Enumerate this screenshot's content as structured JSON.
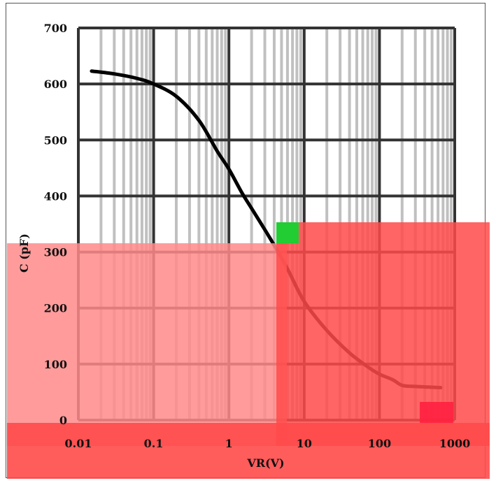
{
  "chart_data": {
    "type": "line",
    "title": "",
    "xlabel": "VR(V)",
    "ylabel": "C (pF)",
    "xscale": "log",
    "xlim": [
      0.01,
      1000
    ],
    "ylim": [
      0,
      700
    ],
    "grid": true,
    "x_ticks": [
      "0.01",
      "0.1",
      "1",
      "10",
      "100",
      "1000"
    ],
    "y_ticks": [
      "0",
      "100",
      "200",
      "300",
      "400",
      "500",
      "600",
      "700"
    ],
    "series": [
      {
        "color": "#000000",
        "points": [
          [
            0.015,
            623
          ],
          [
            0.03,
            618
          ],
          [
            0.06,
            610
          ],
          [
            0.1,
            600
          ],
          [
            0.2,
            578
          ],
          [
            0.4,
            535
          ],
          [
            0.7,
            480
          ],
          [
            1.0,
            448
          ],
          [
            1.5,
            405
          ],
          [
            2.0,
            378
          ],
          [
            3.0,
            340
          ],
          [
            4.0,
            312
          ],
          [
            6.0,
            270
          ],
          [
            10.0,
            212
          ],
          [
            20.0,
            160
          ],
          [
            40.0,
            120
          ],
          [
            70.0,
            95
          ],
          [
            100.0,
            82
          ],
          [
            150.0,
            72
          ],
          [
            200.0,
            62
          ],
          [
            300.0,
            60
          ],
          [
            650.0,
            58
          ]
        ]
      }
    ],
    "overlay_colors": {
      "red_light": "#ff8a8a",
      "red_strong": "#ff4a4a",
      "grid_major": "#333333",
      "grid_minor": "#c0c0c0"
    }
  }
}
